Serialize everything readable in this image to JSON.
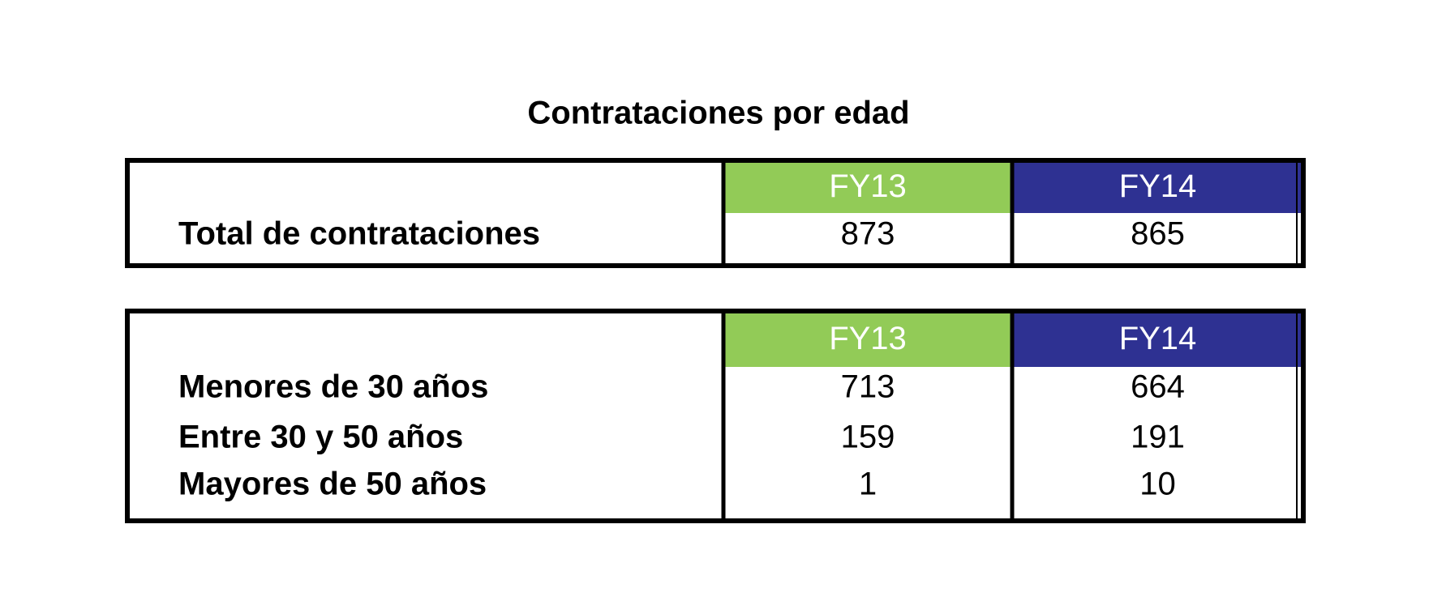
{
  "title": "Contrataciones por edad",
  "tables": [
    {
      "headers": [
        "FY13",
        "FY14"
      ],
      "rows": [
        {
          "label": "Total de contrataciones",
          "values": [
            873,
            865
          ]
        }
      ]
    },
    {
      "headers": [
        "FY13",
        "FY14"
      ],
      "rows": [
        {
          "label": "Menores de 30 años",
          "values": [
            713,
            664
          ]
        },
        {
          "label": "Entre 30 y 50 años",
          "values": [
            159,
            191
          ]
        },
        {
          "label": "Mayores de 50 años",
          "values": [
            1,
            10
          ]
        }
      ]
    }
  ]
}
